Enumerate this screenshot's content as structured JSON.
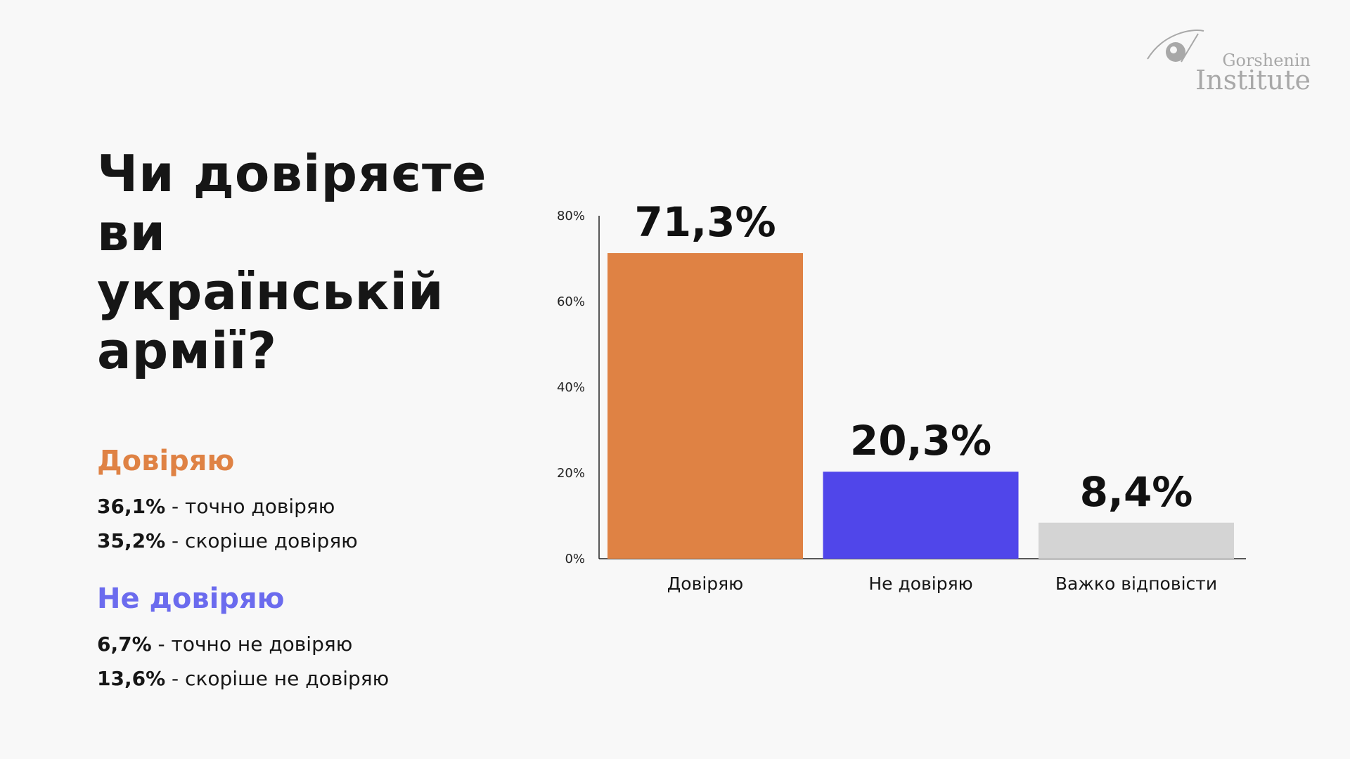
{
  "logo": {
    "line1": "Gorshenin",
    "line2": "Institute"
  },
  "question": "Чи довіряєте ви українській армії?",
  "legend": [
    {
      "title": "Довіряю",
      "color": "#df8244",
      "rows": [
        {
          "value": "36,1%",
          "text": " - точно довіряю"
        },
        {
          "value": "35,2%",
          "text": " - скоріше довіряю"
        }
      ]
    },
    {
      "title": "Не довіряю",
      "color": "#6b6bee",
      "rows": [
        {
          "value": "6,7%",
          "text": " - точно не довіряю"
        },
        {
          "value": "13,6%",
          "text": " - скоріше не довіряю"
        }
      ]
    }
  ],
  "chart_data": {
    "type": "bar",
    "categories": [
      "Довіряю",
      "Не довіряю",
      "Важко відповісти"
    ],
    "values": [
      71.3,
      20.3,
      8.4
    ],
    "value_labels": [
      "71,3%",
      "20,3%",
      "8,4%"
    ],
    "colors": [
      "#df8244",
      "#5046ea",
      "#d4d4d4"
    ],
    "ylim": [
      0,
      80
    ],
    "yticks": [
      0,
      20,
      40,
      60,
      80
    ],
    "ytick_labels": [
      "0%",
      "20%",
      "40%",
      "60%",
      "80%"
    ],
    "grid": false,
    "title": "",
    "xlabel": "",
    "ylabel": ""
  }
}
